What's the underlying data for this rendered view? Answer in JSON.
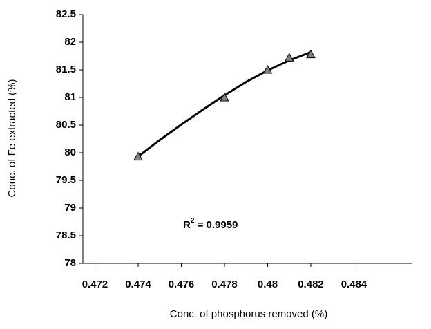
{
  "chart_data": {
    "type": "scatter",
    "x_label": "Conc. of phosphorus removed (%)",
    "y_label": "Conc. of Fe extracted (%)",
    "x": [
      0.474,
      0.478,
      0.48,
      0.481,
      0.482
    ],
    "series": [
      {
        "values": [
          79.93,
          81.0,
          81.5,
          81.72,
          81.78
        ],
        "color": "#808080"
      }
    ],
    "trendline": {
      "x": [
        0.474,
        0.475,
        0.476,
        0.477,
        0.478,
        0.479,
        0.48,
        0.481,
        0.482
      ],
      "values": [
        79.93,
        80.23,
        80.51,
        80.78,
        81.04,
        81.28,
        81.49,
        81.67,
        81.82
      ],
      "color": "#000000"
    },
    "annotation": {
      "base": "R",
      "sup": "2",
      "rest": " = 0.9959"
    },
    "xlim": [
      0.472,
      0.484
    ],
    "xticks": [
      0.472,
      0.474,
      0.476,
      0.478,
      0.48,
      0.482,
      0.484
    ],
    "ylim": [
      78,
      82.5
    ],
    "yticks": [
      78,
      78.5,
      79,
      79.5,
      80,
      80.5,
      81,
      81.5,
      82,
      82.5
    ],
    "grid": false
  }
}
